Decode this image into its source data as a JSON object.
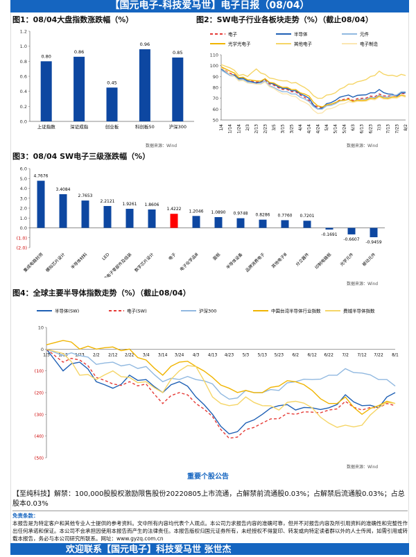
{
  "header": {
    "title": "【国元电子-科技爱马世】电子日报（08/04）"
  },
  "fig1": {
    "title": "图1：08/04大盘指数涨跌幅（%）",
    "source": "数据来源：Wind",
    "chart_data": {
      "type": "bar",
      "categories": [
        "上证指数",
        "深证成指",
        "创业板",
        "科创板50",
        "沪深300"
      ],
      "values": [
        0.8,
        0.86,
        0.45,
        0.96,
        0.85
      ],
      "labels": [
        "0.80",
        "0.86",
        "0.45",
        "0.96",
        "0.85"
      ],
      "ylim": [
        0,
        1.2
      ],
      "yticks": [
        "0.0",
        "0.2",
        "0.4",
        "0.6",
        "0.8",
        "1.0",
        "1.2"
      ],
      "color": "#0d47a1"
    }
  },
  "fig2": {
    "title": "图2：SW电子行业各板块走势（%）（截止08/04）",
    "source": "数据来源：Wind",
    "chart_data": {
      "type": "line",
      "ylim": [
        50,
        110
      ],
      "yticks": [
        "50",
        "60",
        "70",
        "80",
        "90",
        "100",
        "110"
      ],
      "x": [
        "1/4",
        "1/14",
        "1/24",
        "2/3",
        "2/13",
        "2/23",
        "3/5",
        "3/15",
        "3/25",
        "4/4",
        "4/14",
        "4/24",
        "5/4",
        "5/14",
        "5/24",
        "6/3",
        "6/13",
        "6/23",
        "7/3",
        "7/13",
        "7/23",
        "8/2"
      ],
      "series": [
        {
          "name": "电子",
          "color": "#e53935",
          "dash": true,
          "values": [
            98,
            93,
            88,
            86,
            85,
            87,
            82,
            78,
            76,
            73,
            68,
            62,
            64,
            66,
            69,
            68,
            70,
            72,
            74,
            72,
            72,
            74
          ]
        },
        {
          "name": "半导体",
          "color": "#1e5fb4",
          "values": [
            97,
            92,
            88,
            86,
            84,
            88,
            83,
            79,
            77,
            74,
            70,
            60,
            65,
            68,
            72,
            71,
            73,
            75,
            78,
            74,
            72,
            75
          ]
        },
        {
          "name": "元件",
          "color": "#90b8e0",
          "values": [
            96,
            91,
            87,
            85,
            83,
            86,
            80,
            76,
            74,
            71,
            67,
            60,
            63,
            65,
            68,
            67,
            69,
            71,
            73,
            71,
            73,
            76
          ]
        },
        {
          "name": "光学光电子",
          "color": "#f0b400",
          "values": [
            99,
            95,
            89,
            87,
            86,
            88,
            84,
            80,
            78,
            75,
            72,
            63,
            64,
            66,
            68,
            67,
            68,
            70,
            72,
            70,
            71,
            72
          ]
        },
        {
          "name": "其他电子",
          "color": "#f5d566",
          "values": [
            101,
            98,
            91,
            90,
            97,
            92,
            88,
            86,
            84,
            82,
            77,
            70,
            73,
            75,
            80,
            83,
            86,
            90,
            95,
            91,
            90,
            91
          ]
        },
        {
          "name": "电子制造",
          "color": "#fbe6b0",
          "values": [
            98,
            92,
            86,
            84,
            83,
            85,
            79,
            74,
            72,
            68,
            64,
            56,
            60,
            62,
            65,
            66,
            67,
            69,
            71,
            69,
            70,
            71
          ]
        }
      ]
    }
  },
  "fig3": {
    "title": "图3：08/04 SW电子三级涨跌幅（%）",
    "source": "数据来源：Wind",
    "chart_data": {
      "type": "bar",
      "categories": [
        "集成电路封测",
        "模拟芯片设计",
        "半导体材料",
        "LED",
        "消费电子零部件及组装",
        "数字芯片设计",
        "电子",
        "电子化学品Ⅲ",
        "面板",
        "半导体设备",
        "品牌消费电子",
        "其他电子Ⅲ",
        "分立器件",
        "印制电路板",
        "光学元件",
        "被动元件"
      ],
      "values": [
        4.7676,
        3.4084,
        2.7653,
        2.2121,
        1.9261,
        1.8606,
        1.4222,
        1.2046,
        1.089,
        0.9748,
        0.8286,
        0.776,
        0.7201,
        -0.1691,
        -0.6607,
        -0.9459
      ],
      "labels": [
        "4.7676",
        "3.4084",
        "2.7653",
        "2.2121",
        "1.9261",
        "1.8606",
        "1.4222",
        "1.2046",
        "1.0890",
        "0.9748",
        "0.8286",
        "0.7760",
        "0.7201",
        "-0.1691",
        "-0.6607",
        "-0.9459"
      ],
      "ylim": [
        -2,
        6
      ],
      "yticks": [
        "(2.0)",
        "(1.0)",
        "0.0",
        "1.0",
        "2.0",
        "3.0",
        "4.0",
        "5.0",
        "6.0"
      ],
      "color": "#0d47a1",
      "highlight": "电子",
      "highlight_color": "#ff0000"
    }
  },
  "fig4": {
    "title": "图4：全球主要半导体指数走势（%）（截止08/04）",
    "source": "数据来源：Wind",
    "chart_data": {
      "type": "line",
      "ylim": [
        -50,
        10
      ],
      "yticks": [
        "(50)",
        "(40)",
        "(30)",
        "(20)",
        "(10)",
        "0",
        "10"
      ],
      "x": [
        "1/3",
        "1/13",
        "1/23",
        "2/2",
        "2/12",
        "2/22",
        "3/4",
        "3/14",
        "3/24",
        "4/3",
        "4/13",
        "4/23",
        "5/3",
        "5/13",
        "5/23",
        "6/2",
        "6/12",
        "6/22",
        "7/2",
        "7/12",
        "7/22",
        "8/1"
      ],
      "series": [
        {
          "name": "半导体(SW)",
          "color": "#1e5fb4",
          "values": [
            0,
            -10,
            -6,
            -15,
            -18,
            -12,
            -14,
            -20,
            -15,
            -22,
            -30,
            -39,
            -34,
            -30,
            -26,
            -28,
            -27,
            -27,
            -21,
            -26,
            -27,
            -20
          ]
        },
        {
          "name": "电子(SW)",
          "color": "#e53935",
          "dash": true,
          "values": [
            0,
            -6,
            -5,
            -13,
            -16,
            -15,
            -16,
            -25,
            -20,
            -25,
            -31,
            -41,
            -37,
            -34,
            -32,
            -30,
            -29,
            -28,
            -24,
            -28,
            -27,
            -26
          ]
        },
        {
          "name": "沪深300",
          "color": "#90b8e0",
          "values": [
            0,
            -3,
            -3,
            -7,
            -6,
            -7,
            -8,
            -15,
            -14,
            -14,
            -16,
            -23,
            -19,
            -20,
            -19,
            -15,
            -14,
            -12,
            -9,
            -11,
            -14,
            -17
          ]
        },
        {
          "name": "中国台湾半导体行业指数",
          "color": "#f0b400",
          "values": [
            2,
            4,
            0,
            0,
            1,
            0,
            -5,
            -12,
            -6,
            -8,
            -13,
            -18,
            -19,
            -20,
            -17,
            -15,
            -19,
            -25,
            -22,
            -30,
            -26,
            -25
          ]
        },
        {
          "name": "费城半导体指数",
          "color": "#f5d566",
          "values": [
            0,
            -2,
            -12,
            -14,
            -10,
            -13,
            -15,
            -20,
            -10,
            -8,
            -22,
            -26,
            -22,
            -26,
            -28,
            -24,
            -27,
            -34,
            -35,
            -35,
            -27,
            -25
          ]
        }
      ]
    }
  },
  "announcements": {
    "title": "重要个股公告",
    "text": "【至纯科技】解禁：100,000股股权激励限售股份20220805上市流通，占解禁前流通股0.03%；占解禁后流通股0.03%；占总股本0.03%"
  },
  "disclaimer": {
    "title": "免责条款：",
    "text": "本报告是为特定客户和其他专业人士提供的参考资料。文中所有内容均代表个人观点。本公司力求报告内容的准确可靠，但并不对报告内容及所引用资料的准确性和完整性作出任何承诺和保证。本公司不会承担因使用本报告而产生的法律责任。本报告版权归国元证券所有，未经授权不得复印、转发或向特定读者群以外的人士传阅，如需引用或转载本报告，务必与本公司研究所联系。网址：www.gyzq.com.cn"
  },
  "footer": {
    "text": "欢迎联系【国元电子】科技爱马世 张世杰"
  }
}
